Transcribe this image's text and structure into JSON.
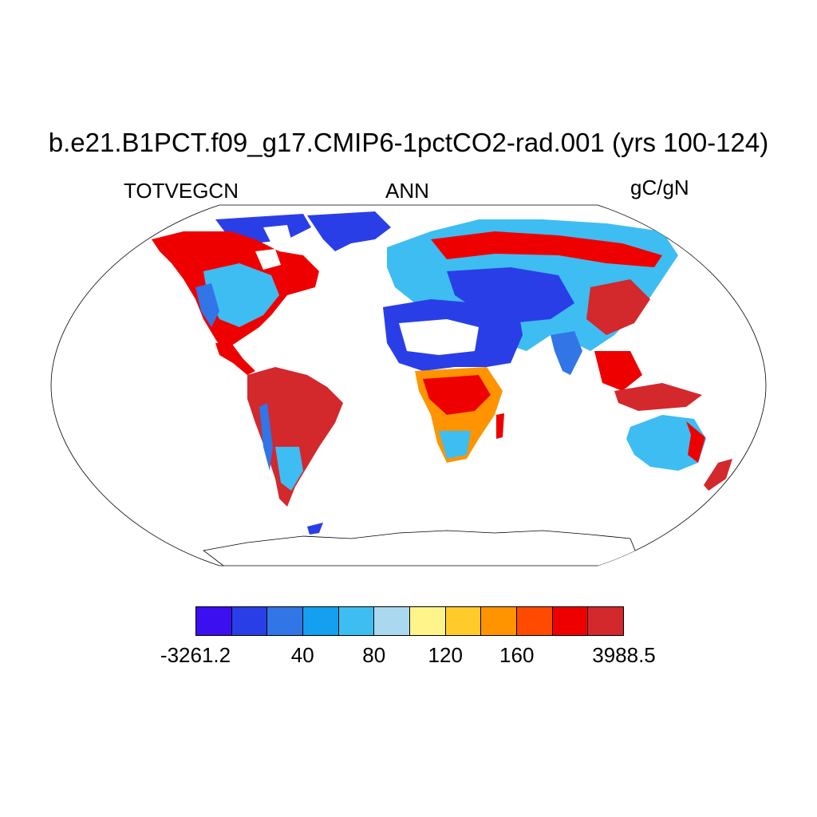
{
  "title": "b.e21.B1PCT.f09_g17.CMIP6-1pctCO2-rad.001 (yrs 100-124)",
  "variable": "TOTVEGCN",
  "period": "ANN",
  "units": "gC/gN",
  "colorbar": {
    "colors": [
      "#3b0ff0",
      "#2a3ee8",
      "#3175e6",
      "#149ff0",
      "#3ebdf2",
      "#a9d8ef",
      "#fff48a",
      "#ffcb2a",
      "#ff9400",
      "#ff4a00",
      "#ef0000",
      "#d3282c"
    ],
    "labels": [
      "-3261.2",
      "40",
      "80",
      "120",
      "160",
      "3988.5"
    ]
  },
  "land_colors": {
    "desert_blue": "#2a3ee8",
    "deep_blue": "#3b0ff0",
    "mid_blue": "#3175e6",
    "light_blue": "#3ebdf2",
    "pale_blue": "#a9d8ef",
    "yellow": "#fff48a",
    "orange": "#ff9400",
    "red": "#ef0000",
    "dark_red": "#d3282c",
    "no_data": "#ffffff"
  }
}
